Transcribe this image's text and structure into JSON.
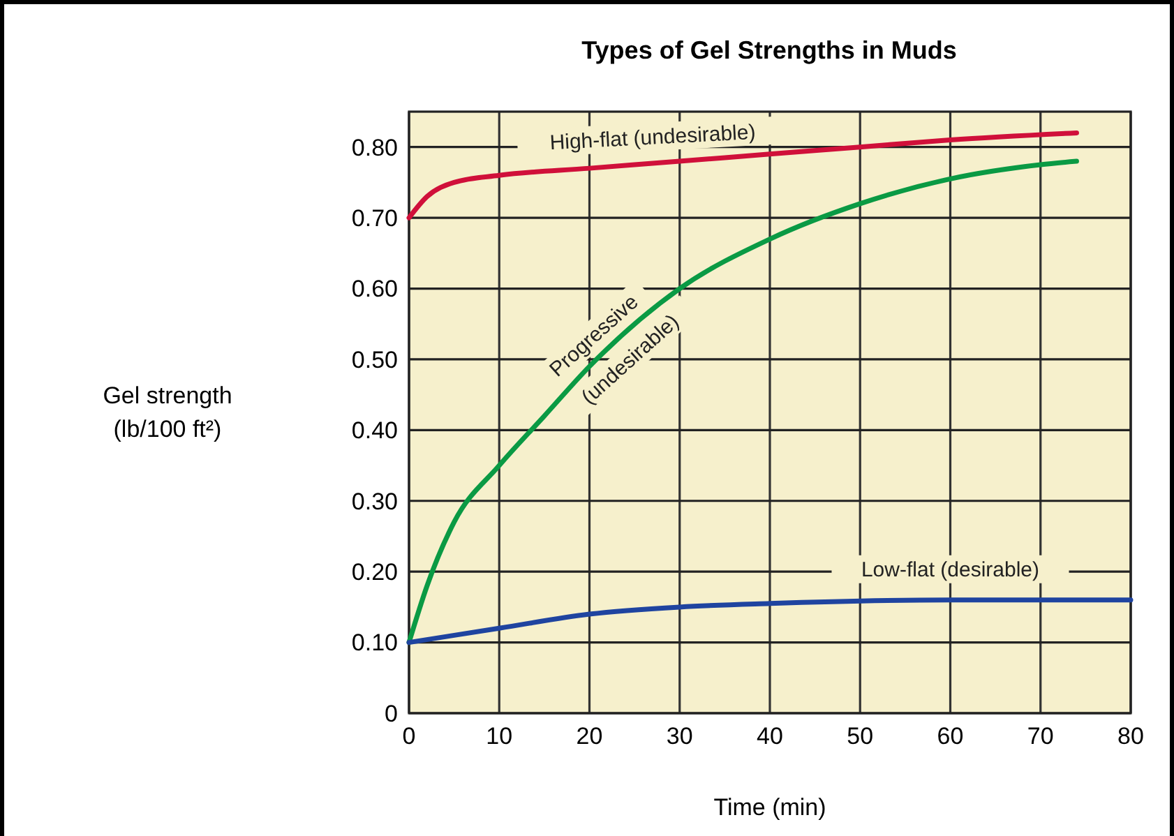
{
  "chart_data": {
    "type": "line",
    "title": "Types of Gel Strengths in Muds",
    "xlabel": "Time (min)",
    "annotations": [
      "Gel strength (lb/100 ft²)"
    ],
    "xlim": [
      0,
      80
    ],
    "xticks": [
      0,
      10,
      20,
      30,
      40,
      50,
      60,
      70,
      80
    ],
    "ylim": [
      0,
      0.85
    ],
    "yticks": [
      {
        "value": 0,
        "label": "0"
      },
      {
        "value": 0.1,
        "label": "0.10"
      },
      {
        "value": 0.2,
        "label": "0.20"
      },
      {
        "value": 0.3,
        "label": "0.30"
      },
      {
        "value": 0.4,
        "label": "0.40"
      },
      {
        "value": 0.5,
        "label": "0.50"
      },
      {
        "value": 0.6,
        "label": "0.60"
      },
      {
        "value": 0.7,
        "label": "0.70"
      },
      {
        "value": 0.8,
        "label": "0.80"
      }
    ],
    "grid": true,
    "marker": "none",
    "line_style": "solid",
    "series": [
      {
        "name": "High-flat (undesirable)",
        "color": "#d0103a",
        "x": [
          0,
          2,
          5,
          10,
          20,
          30,
          40,
          50,
          60,
          74
        ],
        "values": [
          0.7,
          0.73,
          0.75,
          0.76,
          0.77,
          0.78,
          0.79,
          0.8,
          0.81,
          0.82
        ]
      },
      {
        "name": "Progressive (undesirable)",
        "color": "#0a9a44",
        "x": [
          0,
          2,
          5,
          10,
          15,
          20,
          30,
          40,
          50,
          60,
          70,
          74
        ],
        "values": [
          0.1,
          0.18,
          0.27,
          0.35,
          0.42,
          0.49,
          0.6,
          0.67,
          0.72,
          0.755,
          0.775,
          0.78
        ]
      },
      {
        "name": "Low-flat (desirable)",
        "color": "#1f44a0",
        "x": [
          0,
          10,
          20,
          30,
          40,
          60,
          80
        ],
        "values": [
          0.1,
          0.12,
          0.14,
          0.15,
          0.155,
          0.16,
          0.16
        ]
      }
    ]
  }
}
